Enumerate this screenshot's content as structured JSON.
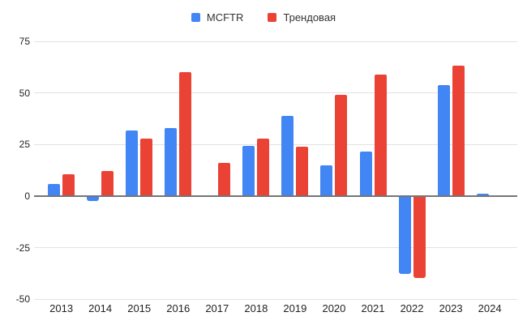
{
  "chart_data": {
    "type": "bar",
    "title": "",
    "categories": [
      "2013",
      "2014",
      "2015",
      "2016",
      "2017",
      "2018",
      "2019",
      "2020",
      "2021",
      "2022",
      "2023",
      "2024"
    ],
    "series": [
      {
        "name": "MCFTR",
        "color": "#4285F4",
        "values": [
          6,
          -2,
          32,
          33,
          0,
          24.5,
          39,
          15,
          21.5,
          -37.5,
          54,
          1
        ]
      },
      {
        "name": "Трендовая",
        "color": "#EA4335",
        "values": [
          10.5,
          12,
          28,
          60,
          16,
          28,
          24,
          49,
          59,
          -39.5,
          63.5,
          0
        ]
      }
    ],
    "yticks": [
      75,
      50,
      25,
      0,
      -25,
      -50
    ],
    "ylim": [
      -50,
      75
    ],
    "xlabel": "",
    "ylabel": "",
    "grid": true,
    "legend_position": "top",
    "zero_line_color": "#757575",
    "gridline_color": "#e2e2e2",
    "background_color": "#ffffff"
  }
}
